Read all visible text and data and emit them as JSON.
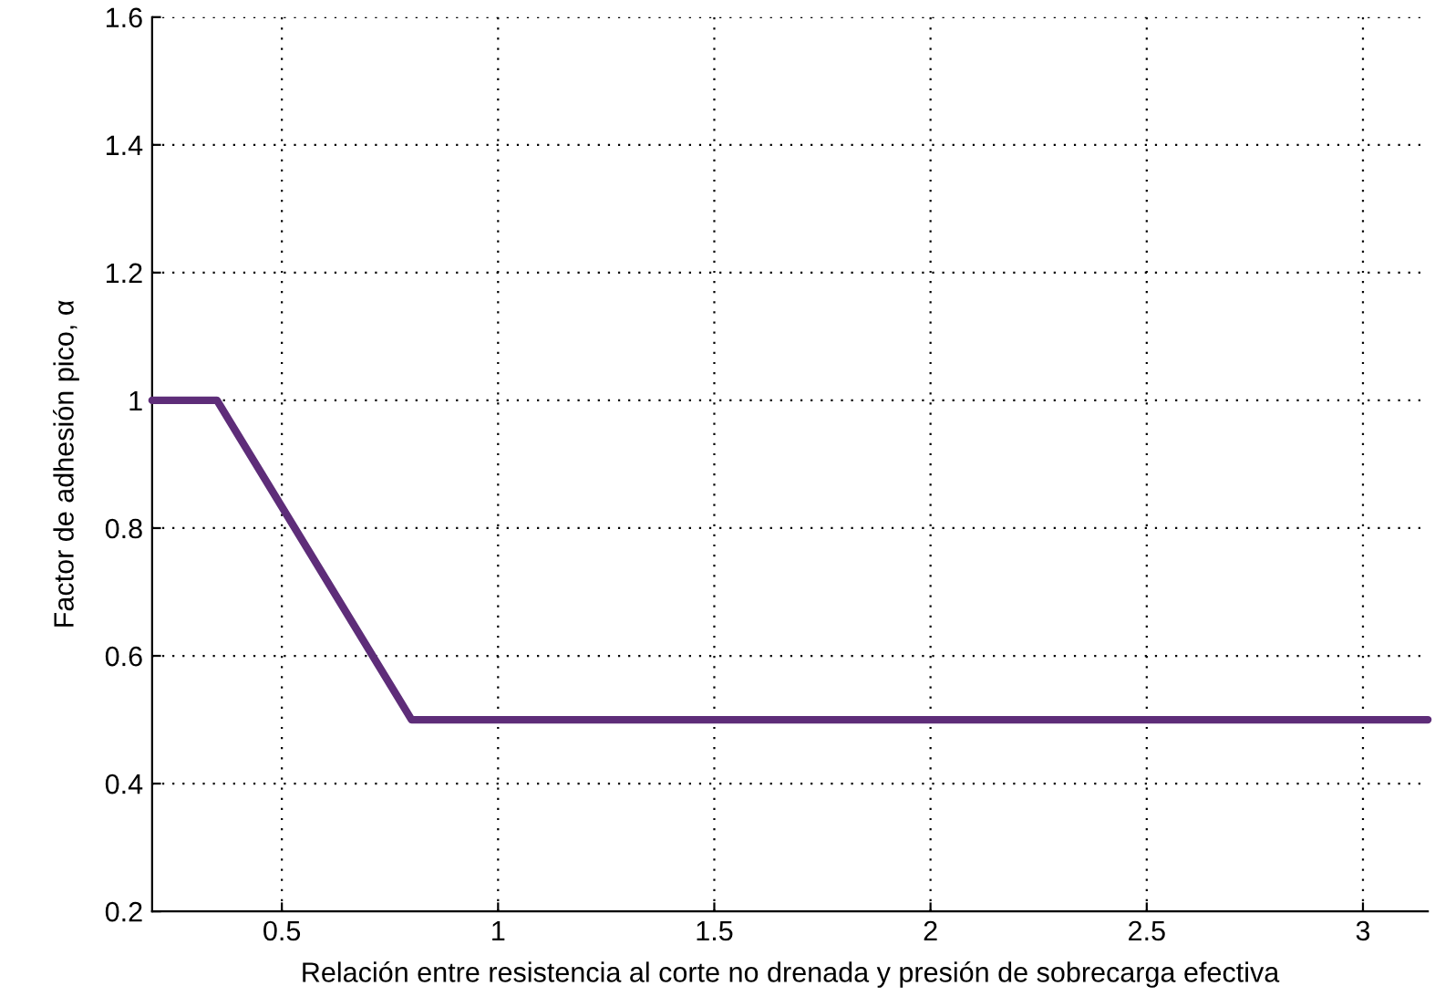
{
  "chart_data": {
    "type": "line",
    "xlabel": "Relación entre resistencia al corte no drenada y presión de sobrecarga efectiva",
    "ylabel": "Factor de adhesión pico, α",
    "x": [
      0.2,
      0.35,
      0.8,
      3.15
    ],
    "series": [
      {
        "color": "#5e2d79",
        "values": [
          1,
          1,
          0.5,
          0.5
        ]
      }
    ],
    "xlim": [
      0.2,
      3.15
    ],
    "xticks": [
      0.5,
      1,
      1.5,
      2,
      2.5,
      3
    ],
    "ylim": [
      0.2,
      1.6
    ],
    "yticks": [
      0.2,
      0.4,
      0.6,
      0.8,
      1,
      1.2,
      1.4,
      1.6
    ],
    "grid": true,
    "line_style": "solid",
    "marker": "none"
  }
}
